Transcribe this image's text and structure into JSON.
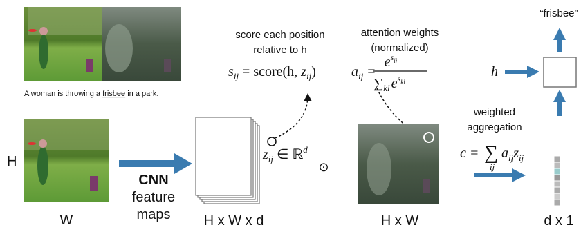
{
  "caption": {
    "before": "A woman is throwing a ",
    "underlined": "frisbee",
    "after": " in a park."
  },
  "input": {
    "height_label": "H",
    "width_label": "W"
  },
  "cnn": {
    "title": "CNN",
    "line1": "feature",
    "line2": "maps"
  },
  "feature_maps": {
    "size_label": "H x W x d"
  },
  "score": {
    "line1": "score each position",
    "line2": "relative to h",
    "formula": {
      "s": "s",
      "s_sub": "ij",
      "eq": " = score(h, ",
      "z": "z",
      "z_sub": "ij",
      "close": ")"
    }
  },
  "feature_vector": {
    "z": "z",
    "z_sub": "ij",
    "in": " ∈ ℝ",
    "sup": "d"
  },
  "product_symbol": "⊙",
  "attention": {
    "line1": "attention weights",
    "line2": "(normalized)",
    "formula": {
      "a": "a",
      "a_sub": "ij",
      "eq": "=",
      "num_e": "e",
      "num_sup": "s",
      "num_sup_sub": "ij",
      "den_sum": "∑",
      "den_sub": "kl",
      "den_e": "e",
      "den_sup": "s",
      "den_sup_sub": "kl"
    },
    "size_label": "H x W"
  },
  "aggregation": {
    "line1": "weighted",
    "line2": "aggregation",
    "formula": {
      "c": "c = ",
      "sum": "∑",
      "sum_sub": "ij",
      "a": "a",
      "a_sub": "ij",
      "z": "z",
      "z_sub": "ij"
    },
    "size_label": "d x 1"
  },
  "decoder": {
    "hidden": "h",
    "output": "“frisbee”"
  }
}
